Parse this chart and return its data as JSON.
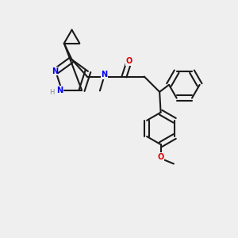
{
  "bg_color": "#efefef",
  "bond_color": "#1a1a1a",
  "N_color": "#0000ee",
  "O_color": "#dd0000",
  "H_color": "#888888",
  "bond_width": 1.5,
  "figsize": [
    3.0,
    3.0
  ],
  "dpi": 100,
  "xlim": [
    0,
    10
  ],
  "ylim": [
    0,
    10
  ]
}
